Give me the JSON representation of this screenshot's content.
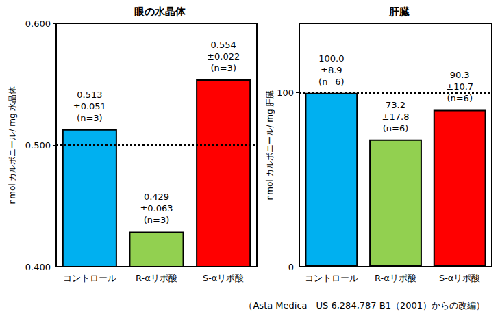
{
  "caption": "（Asta Medica　US 6,284,787 B1（2001）からの改編）",
  "chart_data": [
    {
      "type": "bar",
      "title": "眼の水晶体",
      "ylabel": "nmol カルボニール/ mg 水晶体",
      "categories": [
        "コントロール",
        "R-αリポ酸",
        "S-αリポ酸"
      ],
      "values": [
        0.513,
        0.429,
        0.554
      ],
      "value_labels": [
        "0.513\n±0.051\n(n=3)",
        "0.429\n±0.063\n(n=3)",
        "0.554\n±0.022\n(n=3)"
      ],
      "colors": [
        "#00b0f0",
        "#92d050",
        "#ff0000"
      ],
      "ylim": [
        0.4,
        0.6
      ],
      "yticks": [
        {
          "value": 0.4,
          "label": "0.400"
        },
        {
          "value": 0.5,
          "label": "0.500"
        },
        {
          "value": 0.6,
          "label": "0.600"
        }
      ],
      "reference_line": 0.5,
      "grid": false,
      "data_labels": true
    },
    {
      "type": "bar",
      "title": "肝臓",
      "ylabel": "nmol カルボニール/ mg 肝臓",
      "categories": [
        "コントロール",
        "R-αリポ酸",
        "S-αリポ酸"
      ],
      "values": [
        100.0,
        73.2,
        90.3
      ],
      "value_labels": [
        "100.0\n±8.9\n(n=6)",
        "73.2\n±17.8\n(n=6)",
        "90.3\n±10.7\n(n=6)"
      ],
      "colors": [
        "#00b0f0",
        "#92d050",
        "#ff0000"
      ],
      "ylim": [
        0,
        140
      ],
      "yticks": [
        0,
        100
      ],
      "reference_line": 100,
      "grid": false,
      "data_labels": true
    }
  ]
}
